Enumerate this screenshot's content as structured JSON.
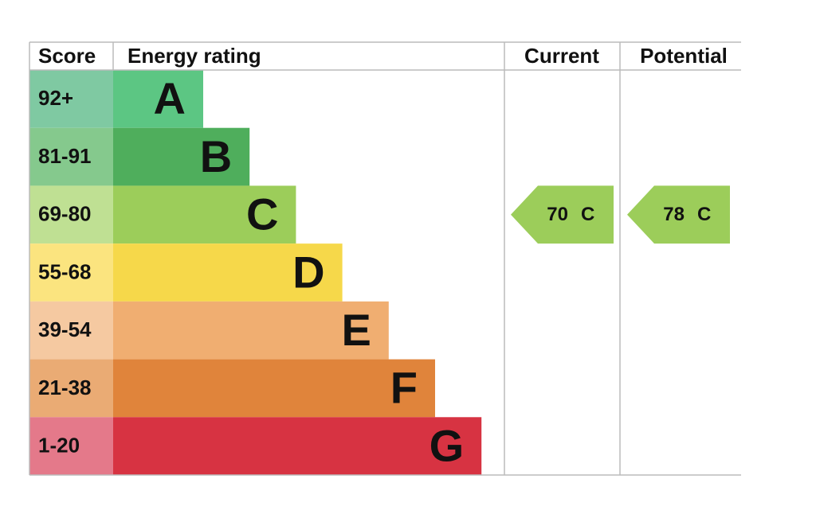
{
  "headers": [
    "Score",
    "Energy rating",
    "Current",
    "Potential"
  ],
  "bands": [
    {
      "score": "92+",
      "letter": "A",
      "color": "#5cc683",
      "score_color": "#7fc9a2"
    },
    {
      "score": "81-91",
      "letter": "B",
      "color": "#4fae5c",
      "score_color": "#85c98d"
    },
    {
      "score": "69-80",
      "letter": "C",
      "color": "#9ccd5a",
      "score_color": "#bfe093"
    },
    {
      "score": "55-68",
      "letter": "D",
      "color": "#f6d84a",
      "score_color": "#fbe47f"
    },
    {
      "score": "39-54",
      "letter": "E",
      "color": "#f0ae71",
      "score_color": "#f5c9a1"
    },
    {
      "score": "21-38",
      "letter": "F",
      "color": "#e0843b",
      "score_color": "#eaab74"
    },
    {
      "score": "1-20",
      "letter": "G",
      "color": "#d73342",
      "score_color": "#e4798a"
    }
  ],
  "current": {
    "value": 70,
    "letter": "C"
  },
  "potential": {
    "value": 78,
    "letter": "C"
  }
}
